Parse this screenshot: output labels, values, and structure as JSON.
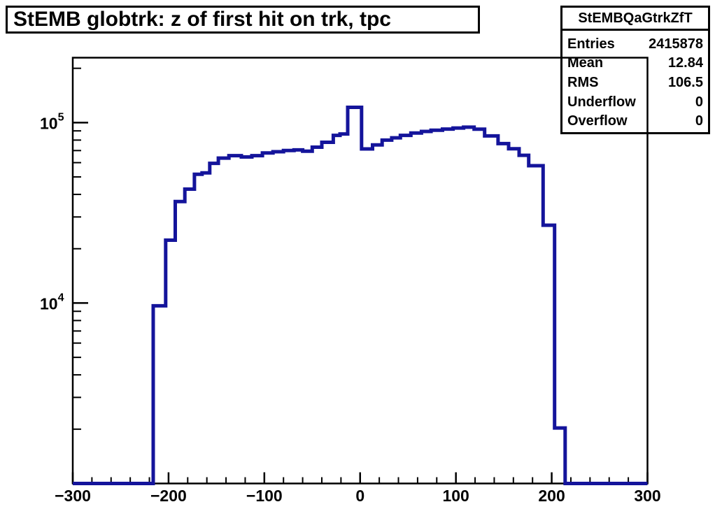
{
  "title": {
    "text": "StEMB globtrk: z of first hit on trk, tpc"
  },
  "stats": {
    "name": "StEMBQaGtrkZfT",
    "rows": [
      {
        "label": "Entries",
        "value": "2415878"
      },
      {
        "label": "Mean",
        "value": "12.84"
      },
      {
        "label": "RMS",
        "value": "106.5"
      },
      {
        "label": "Underflow",
        "value": "0"
      },
      {
        "label": "Overflow",
        "value": "0"
      }
    ]
  },
  "chart_data": {
    "type": "bar",
    "subtype": "step-histogram",
    "title": "StEMB globtrk: z of first hit on trk, tpc",
    "hist_name": "StEMBQaGtrkZfT",
    "xlabel": "",
    "ylabel": "",
    "xlim": [
      -300,
      300
    ],
    "ylim": [
      1000,
      229000
    ],
    "yscale": "log",
    "grid": false,
    "legend": "none",
    "line_color": "#14149B",
    "line_width": 5,
    "frame_color": "#000000",
    "x_major_ticks": [
      -300,
      -200,
      -100,
      0,
      100,
      200,
      300
    ],
    "x_tick_labels": [
      "−300",
      "−200",
      "−100",
      "0",
      "100",
      "200",
      "300"
    ],
    "x_minor_step": 20,
    "y_decade_labels": [
      {
        "mantissa": "10",
        "exponent": "4",
        "value": 10000
      },
      {
        "mantissa": "10",
        "exponent": "5",
        "value": 100000
      }
    ],
    "baseline_value": 1000,
    "bins": {
      "x_edges": [
        -216,
        -203,
        -193,
        -183,
        -173,
        -165,
        -157,
        -148,
        -137,
        -124,
        -113,
        -102,
        -91,
        -80,
        -69,
        -60,
        -50,
        -40,
        -28,
        -21,
        -13,
        1.5,
        13,
        23,
        33,
        42,
        53,
        64,
        74,
        86,
        97,
        108,
        119,
        130,
        144,
        155,
        166,
        176,
        191,
        203,
        214
      ],
      "values": [
        9650,
        22300,
        36500,
        42800,
        51700,
        52700,
        59500,
        63600,
        65600,
        64500,
        65600,
        67900,
        69000,
        70000,
        70600,
        69400,
        73100,
        77800,
        85000,
        86500,
        121500,
        71500,
        75300,
        80000,
        82400,
        85000,
        87500,
        89300,
        90800,
        92100,
        93300,
        94300,
        92000,
        84400,
        76500,
        71600,
        65900,
        57700,
        27000,
        2030
      ]
    }
  }
}
